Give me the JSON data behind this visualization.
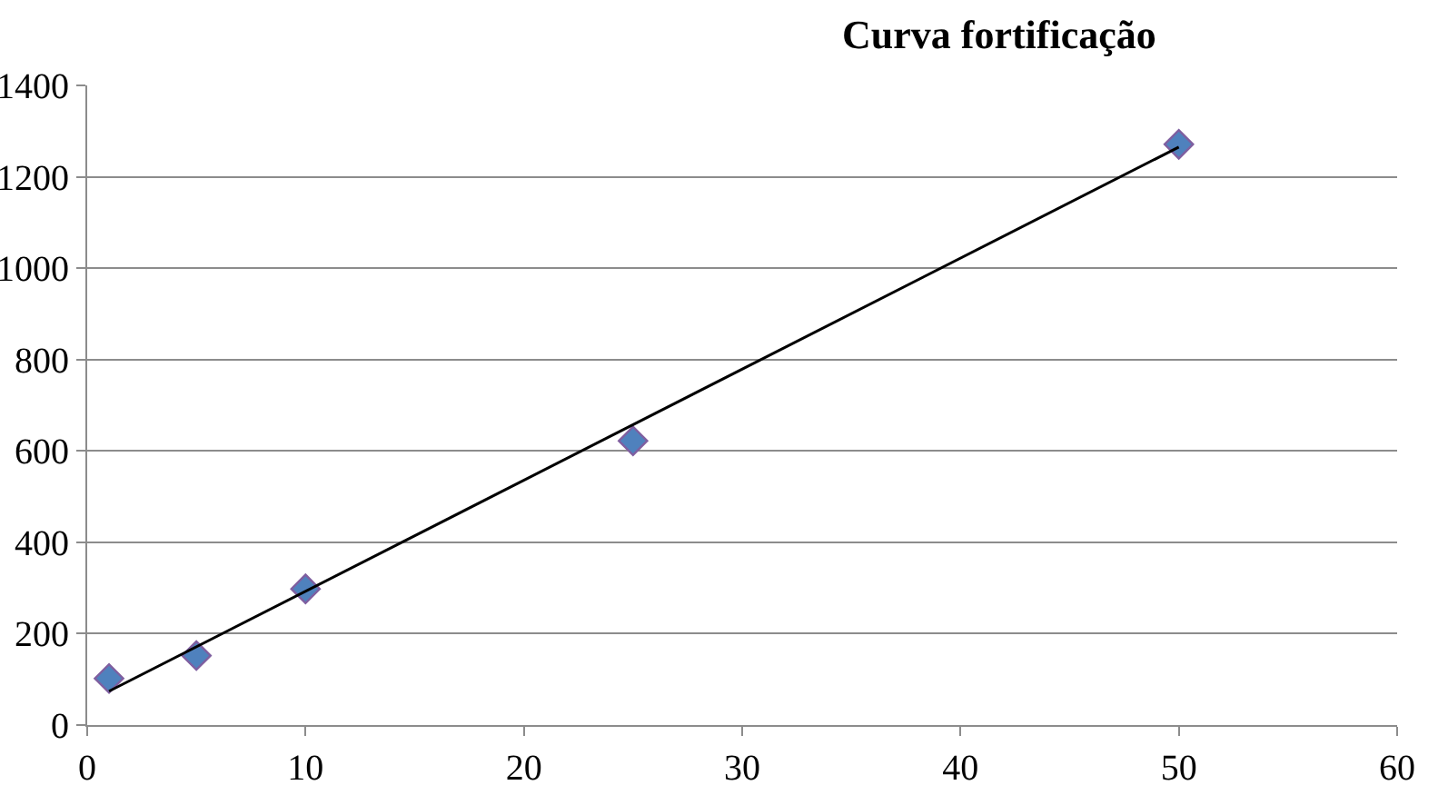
{
  "chart_data": {
    "type": "scatter",
    "title": "Curva fortificação",
    "series": [
      {
        "color": "#4f81bd",
        "x": [
          1,
          5,
          10,
          25,
          50
        ],
        "values": [
          102,
          152,
          298,
          622,
          1271
        ],
        "marker": "diamond"
      },
      {
        "type": "line",
        "color": "#000000",
        "x": [
          1,
          50
        ],
        "values": [
          74,
          1265
        ],
        "marker": "none",
        "line_style": "solid"
      }
    ],
    "xlim": [
      0,
      60
    ],
    "xticks": [
      0,
      10,
      20,
      30,
      40,
      50,
      60
    ],
    "ylim": [
      0,
      1400
    ],
    "yticks": [
      0,
      200,
      400,
      600,
      800,
      1000,
      1200,
      1400
    ],
    "grid": "y"
  }
}
